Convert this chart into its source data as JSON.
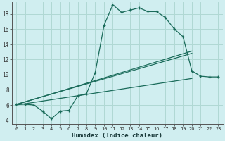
{
  "xlabel": "Humidex (Indice chaleur)",
  "background_color": "#d0eef0",
  "grid_color": "#b0d8d4",
  "line_color": "#1a6b5a",
  "xlim": [
    -0.5,
    23.5
  ],
  "ylim": [
    3.5,
    19.5
  ],
  "xticks": [
    0,
    1,
    2,
    3,
    4,
    5,
    6,
    7,
    8,
    9,
    10,
    11,
    12,
    13,
    14,
    15,
    16,
    17,
    18,
    19,
    20,
    21,
    22,
    23
  ],
  "yticks": [
    4,
    6,
    8,
    10,
    12,
    14,
    16,
    18
  ],
  "main_line_x": [
    0,
    1,
    2,
    3,
    4,
    5,
    6,
    7,
    8,
    9,
    10,
    11,
    12,
    13,
    14,
    15,
    16,
    17,
    18,
    19,
    20,
    21,
    22,
    23
  ],
  "main_line_y": [
    6.1,
    6.1,
    6.0,
    5.2,
    4.2,
    5.2,
    5.3,
    7.2,
    7.5,
    10.3,
    16.5,
    19.2,
    18.2,
    18.5,
    18.8,
    18.3,
    18.3,
    17.5,
    16.0,
    15.0,
    10.5,
    9.8,
    9.7,
    9.7
  ],
  "trend1_x": [
    0,
    20
  ],
  "trend1_y": [
    6.0,
    9.5
  ],
  "trend2_x": [
    0,
    20
  ],
  "trend2_y": [
    6.1,
    12.8
  ],
  "trend3_x": [
    0,
    20
  ],
  "trend3_y": [
    6.05,
    13.1
  ],
  "figwidth": 3.2,
  "figheight": 2.0,
  "dpi": 100
}
